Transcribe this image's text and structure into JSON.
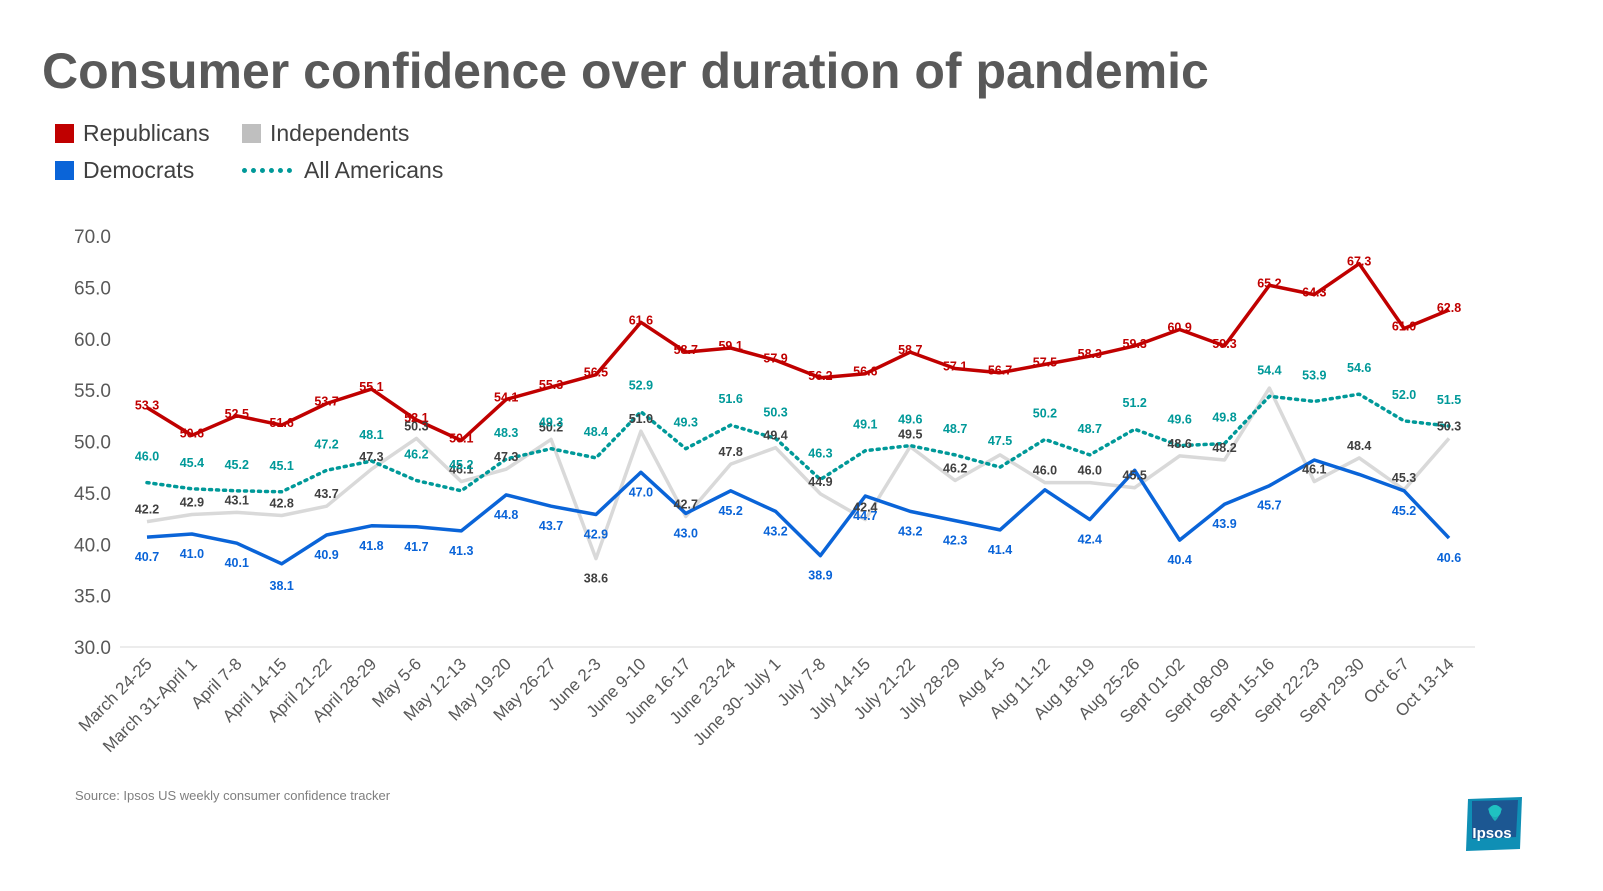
{
  "title": "Consumer confidence over duration of pandemic",
  "source": "Source: Ipsos US weekly consumer confidence tracker",
  "logo_text": "Ipsos",
  "legend": {
    "republicans": "Republicans",
    "independents": "Independents",
    "democrats": "Democrats",
    "all_americans": "All Americans"
  },
  "colors": {
    "republicans": "#c00000",
    "independents": "#d9d9d9",
    "democrats": "#0a64d8",
    "all_americans": "#009999",
    "axis_text": "#595959"
  },
  "chart_data": {
    "type": "line",
    "title": "Consumer confidence over duration of pandemic",
    "ylim": [
      30,
      70
    ],
    "yticks": [
      "30.0",
      "35.0",
      "40.0",
      "45.0",
      "50.0",
      "55.0",
      "60.0",
      "65.0",
      "70.0"
    ],
    "grid": false,
    "legend_position": "top-left",
    "categories": [
      "March 24-25",
      "March 31-April 1",
      "April 7-8",
      "April 14-15",
      "April 21-22",
      "April 28-29",
      "May 5-6",
      "May 12-13",
      "May 19-20",
      "May 26-27",
      "June 2-3",
      "June 9-10",
      "June 16-17",
      "June 23-24",
      "June 30- July 1",
      "July 7-8",
      "July 14-15",
      "July 21-22",
      "July 28-29",
      "Aug 4-5",
      "Aug 11-12",
      "Aug 18-19",
      "Aug 25-26",
      "Sept 01-02",
      "Sept 08-09",
      "Sept 15-16",
      "Sept 22-23",
      "Sept 29-30",
      "Oct 6-7",
      "Oct 13-14"
    ],
    "series": [
      {
        "name": "Republicans",
        "key": "republicans",
        "style": "solid",
        "values": [
          53.3,
          50.6,
          52.5,
          51.6,
          53.7,
          55.1,
          52.1,
          50.1,
          54.1,
          55.3,
          56.5,
          61.6,
          58.7,
          59.1,
          57.9,
          56.2,
          56.6,
          58.7,
          57.1,
          56.7,
          57.5,
          58.3,
          59.3,
          60.9,
          59.3,
          65.2,
          64.3,
          67.3,
          61.0,
          62.8
        ],
        "labels": [
          "53.3",
          "50.6",
          "52.5",
          "51.6",
          "53.7",
          "55.1",
          "52.1",
          "50.1",
          "54.1",
          "55.3",
          "56.5",
          "61.6",
          "58.7",
          "59.1",
          "57.9",
          "56.2",
          "56.6",
          "58.7",
          "57.1",
          "56.7",
          "57.5",
          "58.3",
          "59.3",
          "60.9",
          "59.3",
          "65.2",
          "64.3",
          "67.3",
          "61.0",
          "62.8"
        ]
      },
      {
        "name": "Independents",
        "key": "independents",
        "style": "solid",
        "values": [
          42.2,
          42.9,
          43.1,
          42.8,
          43.7,
          47.3,
          50.3,
          46.1,
          47.3,
          50.2,
          38.6,
          51.0,
          42.7,
          47.8,
          49.4,
          44.9,
          42.4,
          49.5,
          46.2,
          48.7,
          46.0,
          46.0,
          45.5,
          48.6,
          48.2,
          55.2,
          46.1,
          48.4,
          45.3,
          50.3
        ],
        "labels": [
          "42.2",
          "42.9",
          "43.1",
          "42.8",
          "43.7",
          "47.3",
          "50.3",
          "46.1",
          "47.3",
          "50.2",
          "38.6",
          "51.0",
          "42.7",
          "47.8",
          "49.4",
          "44.9",
          "42.4",
          "49.5",
          "46.2",
          "",
          "46.0",
          "46.0",
          "45.5",
          "48.6",
          "48.2",
          "",
          "46.1",
          "48.4",
          "45.3",
          "50.3"
        ]
      },
      {
        "name": "Democrats",
        "key": "democrats",
        "style": "solid",
        "values": [
          40.7,
          41.0,
          40.1,
          38.1,
          40.9,
          41.8,
          41.7,
          41.3,
          44.8,
          43.7,
          42.9,
          47.0,
          43.0,
          45.2,
          43.2,
          38.9,
          44.7,
          43.2,
          42.3,
          41.4,
          45.3,
          42.4,
          47.2,
          40.4,
          43.9,
          45.7,
          48.2,
          46.8,
          45.2,
          40.6
        ],
        "labels": [
          "40.7",
          "41.0",
          "40.1",
          "38.1",
          "40.9",
          "41.8",
          "41.7",
          "41.3",
          "44.8",
          "43.7",
          "42.9",
          "47.0",
          "43.0",
          "45.2",
          "43.2",
          "38.9",
          "44.7",
          "43.2",
          "42.3",
          "41.4",
          "",
          "42.4",
          "",
          "40.4",
          "43.9",
          "45.7",
          "",
          "",
          "45.2",
          "40.6"
        ]
      },
      {
        "name": "All Americans",
        "key": "all_americans",
        "style": "dotted",
        "values": [
          46.0,
          45.4,
          45.2,
          45.1,
          47.2,
          48.1,
          46.2,
          45.2,
          48.3,
          49.3,
          48.4,
          52.9,
          49.3,
          51.6,
          50.3,
          46.3,
          49.1,
          49.6,
          48.7,
          47.5,
          50.2,
          48.7,
          51.2,
          49.6,
          49.8,
          54.4,
          53.9,
          54.6,
          52.0,
          51.5
        ],
        "labels": [
          "46.0",
          "45.4",
          "45.2",
          "45.1",
          "47.2",
          "48.1",
          "46.2",
          "45.2",
          "48.3",
          "49.3",
          "48.4",
          "52.9",
          "49.3",
          "51.6",
          "50.3",
          "46.3",
          "49.1",
          "49.6",
          "48.7",
          "47.5",
          "50.2",
          "48.7",
          "51.2",
          "49.6",
          "49.8",
          "54.4",
          "53.9",
          "54.6",
          "52.0",
          "51.5"
        ]
      }
    ]
  }
}
